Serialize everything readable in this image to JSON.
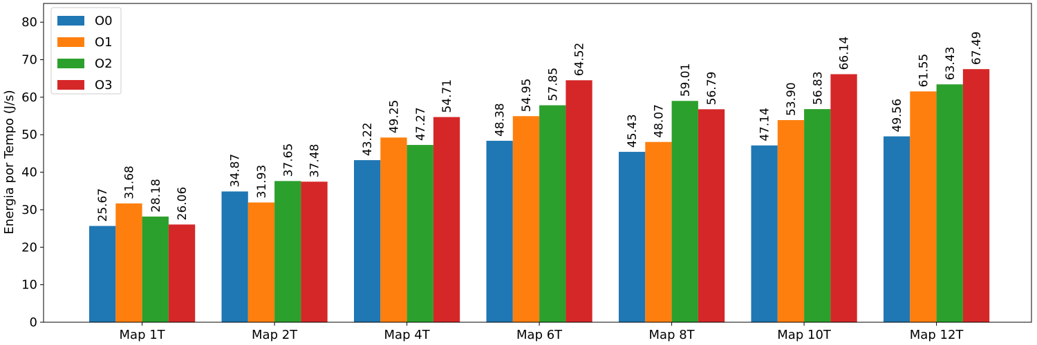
{
  "chart_data": {
    "type": "bar",
    "title": "",
    "xlabel": "",
    "ylabel": "Energia por Tempo (J/s)",
    "ylim": [
      0,
      85
    ],
    "yticks": [
      0,
      10,
      20,
      30,
      40,
      50,
      60,
      70,
      80
    ],
    "grid": false,
    "legend_position": "top-left",
    "categories": [
      "Map 1T",
      "Map 2T",
      "Map 4T",
      "Map 6T",
      "Map 8T",
      "Map 10T",
      "Map 12T"
    ],
    "series": [
      {
        "name": "O0",
        "color": "#1f77b4",
        "values": [
          25.67,
          34.87,
          43.22,
          48.38,
          45.43,
          47.14,
          49.56
        ]
      },
      {
        "name": "O1",
        "color": "#ff7f0e",
        "values": [
          31.68,
          31.93,
          49.25,
          54.95,
          48.07,
          53.9,
          61.55
        ]
      },
      {
        "name": "O2",
        "color": "#2ca02c",
        "values": [
          28.18,
          37.65,
          47.27,
          57.85,
          59.01,
          56.83,
          63.43
        ]
      },
      {
        "name": "O3",
        "color": "#d62728",
        "values": [
          26.06,
          37.48,
          54.71,
          64.52,
          56.79,
          66.14,
          67.49
        ]
      }
    ]
  }
}
